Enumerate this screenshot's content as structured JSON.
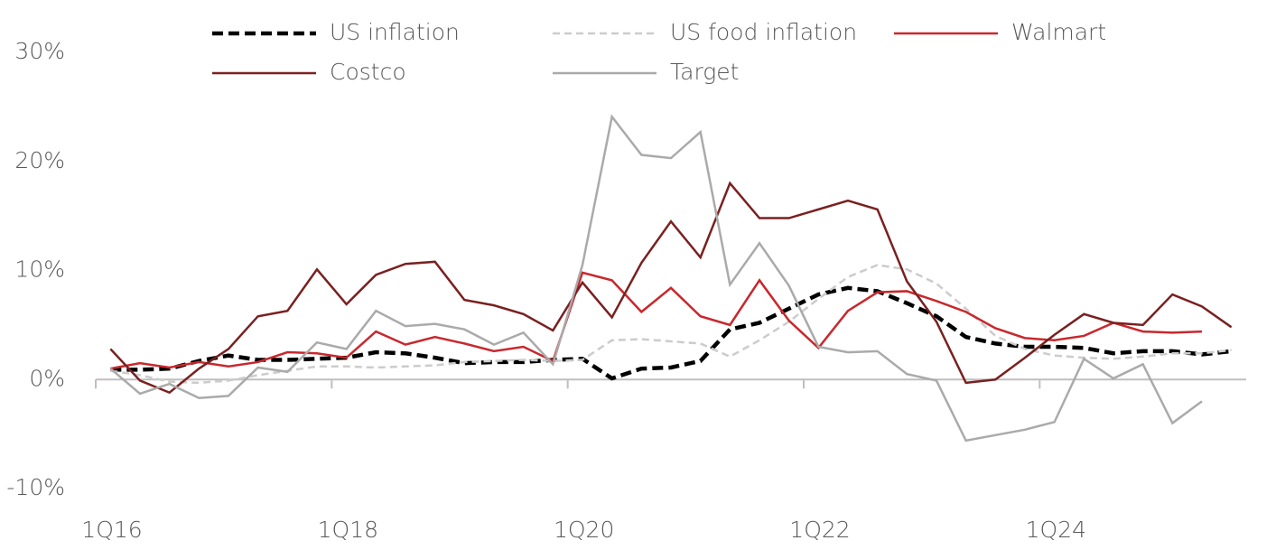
{
  "chart_data": {
    "type": "line",
    "categories": [
      "1Q16",
      null,
      null,
      null,
      null,
      null,
      null,
      null,
      "1Q18",
      null,
      null,
      null,
      null,
      null,
      null,
      null,
      "1Q20",
      null,
      null,
      null,
      null,
      null,
      null,
      null,
      "1Q22",
      null,
      null,
      null,
      null,
      null,
      null,
      null,
      "1Q24",
      null,
      null,
      null,
      null,
      null,
      null
    ],
    "series": [
      {
        "name": "US inflation",
        "color": "#000000",
        "dashed": true,
        "values": [
          0.9,
          0.9,
          1.0,
          1.7,
          2.2,
          1.8,
          1.8,
          1.9,
          2.0,
          2.5,
          2.4,
          2.0,
          1.5,
          1.6,
          1.6,
          1.8,
          1.9,
          0.1,
          1.0,
          1.1,
          1.7,
          4.6,
          5.2,
          6.5,
          7.8,
          8.4,
          8.1,
          7.0,
          5.8,
          3.9,
          3.3,
          3.0,
          3.0,
          2.9,
          2.4,
          2.6,
          2.6,
          2.3,
          2.6
        ]
      },
      {
        "name": "US food inflation",
        "color": "#cccccc",
        "dashed": true,
        "values": [
          0.8,
          0.4,
          -0.2,
          -0.3,
          -0.1,
          0.4,
          0.8,
          1.2,
          1.2,
          1.1,
          1.2,
          1.3,
          1.6,
          1.7,
          1.8,
          1.7,
          1.8,
          3.6,
          3.7,
          3.5,
          3.3,
          2.1,
          3.6,
          5.3,
          7.4,
          9.4,
          10.5,
          10.1,
          8.8,
          6.5,
          4.0,
          2.8,
          2.2,
          2.0,
          1.9,
          2.1,
          2.4,
          2.4,
          2.7
        ]
      },
      {
        "name": "Walmart",
        "color": "#c8282d",
        "dashed": false,
        "values": [
          1.0,
          1.5,
          1.1,
          1.6,
          1.2,
          1.6,
          2.5,
          2.4,
          2.0,
          4.4,
          3.2,
          3.9,
          3.3,
          2.6,
          3.0,
          1.7,
          9.8,
          9.1,
          6.2,
          8.4,
          5.8,
          5.0,
          9.1,
          5.4,
          2.9,
          6.3,
          8.0,
          8.1,
          7.2,
          6.2,
          4.7,
          3.8,
          3.6,
          4.0,
          5.2,
          4.4,
          4.3,
          4.4,
          null
        ]
      },
      {
        "name": "Costco",
        "color": "#7a2020",
        "dashed": false,
        "values": [
          2.8,
          -0.1,
          -1.2,
          1.0,
          2.8,
          5.8,
          6.3,
          10.1,
          6.9,
          9.6,
          10.6,
          10.8,
          7.3,
          6.8,
          6.0,
          4.5,
          8.9,
          5.7,
          10.7,
          14.5,
          11.2,
          18.0,
          14.8,
          14.8,
          15.6,
          16.4,
          15.6,
          9.0,
          5.3,
          -0.3,
          0.0,
          2.0,
          4.1,
          6.0,
          5.2,
          5.0,
          7.8,
          6.7,
          4.8
        ]
      },
      {
        "name": "Target",
        "color": "#aaaaaa",
        "dashed": false,
        "values": [
          1.0,
          -1.3,
          -0.4,
          -1.7,
          -1.5,
          1.1,
          0.7,
          3.4,
          2.8,
          6.3,
          4.9,
          5.1,
          4.6,
          3.2,
          4.3,
          1.4,
          10.5,
          24.1,
          20.6,
          20.3,
          22.7,
          8.7,
          12.5,
          8.6,
          3.0,
          2.5,
          2.6,
          0.5,
          -0.1,
          -5.6,
          -5.1,
          -4.6,
          -3.9,
          1.9,
          0.1,
          1.4,
          -4.0,
          -2.0,
          null
        ]
      }
    ],
    "ylim": [
      -10,
      30
    ],
    "yticks": [
      {
        "value": -10,
        "label": "-10%"
      },
      {
        "value": 0,
        "label": "0%"
      },
      {
        "value": 10,
        "label": "10%"
      },
      {
        "value": 20,
        "label": "20%"
      },
      {
        "value": 30,
        "label": "30%"
      }
    ],
    "grid": false
  }
}
